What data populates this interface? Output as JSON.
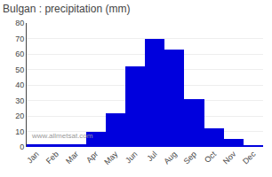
{
  "chart_data": {
    "type": "bar",
    "title": "Bulgan : precipitation (mm)",
    "categories": [
      "Jan",
      "Feb",
      "Mar",
      "Apr",
      "May",
      "Jun",
      "Jul",
      "Aug",
      "Sep",
      "Oct",
      "Nov",
      "Dec"
    ],
    "values": [
      2,
      2,
      2,
      10,
      22,
      52,
      70,
      63,
      31,
      12,
      5,
      1
    ],
    "color": "#0000dd",
    "ylim": [
      0,
      80
    ],
    "yticks": [
      0,
      10,
      20,
      30,
      40,
      50,
      60,
      70,
      80
    ],
    "grid": true,
    "annotations": [
      "www.allmetsat.com"
    ]
  }
}
